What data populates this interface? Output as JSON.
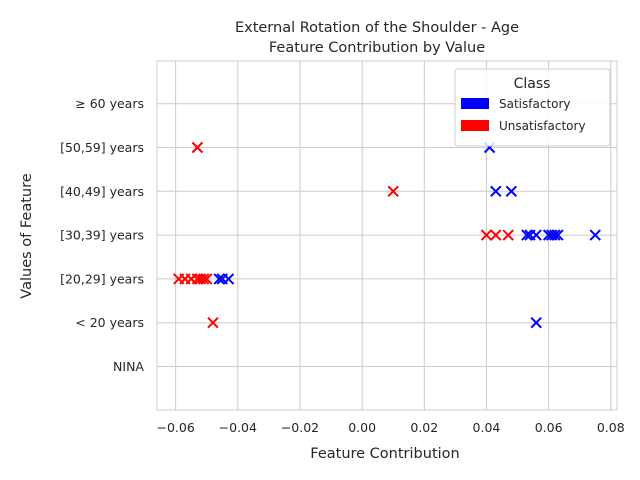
{
  "chart_data": {
    "type": "scatter",
    "title": "External Rotation of the Shoulder - Age",
    "subtitle": "Feature Contribution by Value",
    "xlabel": "Feature Contribution",
    "ylabel": "Values of Feature",
    "xlim": [
      -0.066,
      0.082
    ],
    "x_ticks": [
      -0.06,
      -0.04,
      -0.02,
      0.0,
      0.02,
      0.04,
      0.06,
      0.08
    ],
    "x_tick_labels": [
      "−0.06",
      "−0.04",
      "−0.02",
      "0.00",
      "0.02",
      "0.04",
      "0.06",
      "0.08"
    ],
    "categories": [
      "NINA",
      "< 20 years",
      "[20,29] years",
      "[30,39] years",
      "[40,49] years",
      "[50,59] years",
      "≥ 60 years"
    ],
    "grid": true,
    "marker": "x",
    "legend": {
      "title": "Class",
      "placement": "top-right",
      "entries": [
        {
          "name": "Satisfactory",
          "color": "#0000ff"
        },
        {
          "name": "Unsatisfactory",
          "color": "#ff0000"
        }
      ]
    },
    "series": [
      {
        "name": "Satisfactory",
        "color": "#0000ff",
        "points": [
          {
            "x": 0.056,
            "y": "< 20 years"
          },
          {
            "x": -0.046,
            "y": "[20,29] years"
          },
          {
            "x": -0.045,
            "y": "[20,29] years"
          },
          {
            "x": -0.043,
            "y": "[20,29] years"
          },
          {
            "x": 0.053,
            "y": "[30,39] years"
          },
          {
            "x": 0.054,
            "y": "[30,39] years"
          },
          {
            "x": 0.056,
            "y": "[30,39] years"
          },
          {
            "x": 0.06,
            "y": "[30,39] years"
          },
          {
            "x": 0.061,
            "y": "[30,39] years"
          },
          {
            "x": 0.062,
            "y": "[30,39] years"
          },
          {
            "x": 0.063,
            "y": "[30,39] years"
          },
          {
            "x": 0.075,
            "y": "[30,39] years"
          },
          {
            "x": 0.043,
            "y": "[40,49] years"
          },
          {
            "x": 0.048,
            "y": "[40,49] years"
          },
          {
            "x": 0.041,
            "y": "[50,59] years"
          }
        ]
      },
      {
        "name": "Unsatisfactory",
        "color": "#ff0000",
        "points": [
          {
            "x": -0.048,
            "y": "< 20 years"
          },
          {
            "x": -0.059,
            "y": "[20,29] years"
          },
          {
            "x": -0.057,
            "y": "[20,29] years"
          },
          {
            "x": -0.055,
            "y": "[20,29] years"
          },
          {
            "x": -0.053,
            "y": "[20,29] years"
          },
          {
            "x": -0.052,
            "y": "[20,29] years"
          },
          {
            "x": -0.051,
            "y": "[20,29] years"
          },
          {
            "x": -0.05,
            "y": "[20,29] years"
          },
          {
            "x": 0.04,
            "y": "[30,39] years"
          },
          {
            "x": 0.043,
            "y": "[30,39] years"
          },
          {
            "x": 0.047,
            "y": "[30,39] years"
          },
          {
            "x": 0.01,
            "y": "[40,49] years"
          },
          {
            "x": -0.053,
            "y": "[50,59] years"
          }
        ]
      }
    ]
  }
}
